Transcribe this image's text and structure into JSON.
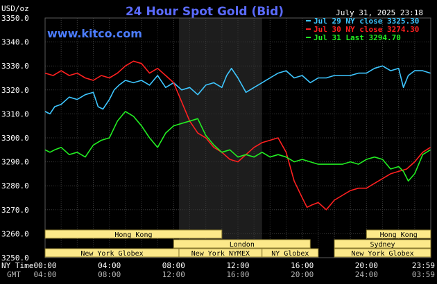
{
  "chart_data": {
    "type": "line",
    "title": "24 Hour Spot Gold (Bid)",
    "source": "www.kitco.com",
    "timestamp": "July 31, 2025 23:18",
    "yunit": "USD/oz",
    "ylim": [
      3250,
      3350
    ],
    "yticks": [
      "3350.0",
      "3340.0",
      "3330.0",
      "3320.0",
      "3310.0",
      "3300.0",
      "3290.0",
      "3280.0",
      "3270.0",
      "3260.0",
      "3250.0"
    ],
    "xrow_label": "NY Time",
    "xrow2_label": "GMT",
    "xticks": [
      "00:00",
      "04:00",
      "08:00",
      "12:00",
      "16:00",
      "20:00",
      "23:59"
    ],
    "xticks_hours": [
      0,
      4,
      8,
      12,
      16,
      20,
      23.983
    ],
    "xticks2": [
      "04:00",
      "08:00",
      "12:00",
      "16:00",
      "20:00",
      "24:00",
      "03:59"
    ],
    "xlim": [
      0,
      24
    ],
    "nymex_shade_hours": [
      8.33,
      13.5
    ],
    "grid": true,
    "legend_position": "top-right",
    "series": [
      {
        "name": "Jul 29 NY close 3325.30",
        "color": "#3ec6ff",
        "x": [
          0,
          0.3,
          0.6,
          1.0,
          1.5,
          2.0,
          2.5,
          3.0,
          3.3,
          3.6,
          4.0,
          4.3,
          4.6,
          5.0,
          5.5,
          6.0,
          6.5,
          7.0,
          7.5,
          8.0,
          8.5,
          9.0,
          9.5,
          10.0,
          10.5,
          11.0,
          11.3,
          11.6,
          12.0,
          12.5,
          13.0,
          13.5,
          14.0,
          14.5,
          15.0,
          15.5,
          16.0,
          16.5,
          17.0,
          17.5,
          18.0,
          18.5,
          19.0,
          19.5,
          20.0,
          20.5,
          21.0,
          21.5,
          22.0,
          22.3,
          22.6,
          23.0,
          23.5,
          23.98
        ],
        "y": [
          3311,
          3310,
          3313,
          3314,
          3317,
          3316,
          3318,
          3319,
          3313,
          3312,
          3316,
          3320,
          3322,
          3324,
          3323,
          3324,
          3322,
          3326,
          3321,
          3323,
          3320,
          3321,
          3318,
          3322,
          3323,
          3321,
          3326,
          3329,
          3325,
          3319,
          3321,
          3323,
          3325,
          3327,
          3328,
          3325,
          3326,
          3323,
          3325,
          3325,
          3326,
          3326,
          3326,
          3327,
          3327,
          3329,
          3330,
          3328,
          3329,
          3321,
          3326,
          3328,
          3328,
          3327
        ]
      },
      {
        "name": "Jul 30 NY close 3274.30",
        "color": "#ff2020",
        "x": [
          0,
          0.5,
          1.0,
          1.5,
          2.0,
          2.5,
          3.0,
          3.5,
          4.0,
          4.5,
          5.0,
          5.5,
          6.0,
          6.5,
          7.0,
          7.5,
          8.0,
          8.5,
          9.0,
          9.5,
          10.0,
          10.5,
          11.0,
          11.5,
          12.0,
          12.5,
          13.0,
          13.5,
          14.0,
          14.5,
          15.0,
          15.5,
          16.0,
          16.3,
          16.6,
          17.0,
          17.5,
          18.0,
          18.5,
          19.0,
          19.5,
          20.0,
          20.5,
          21.0,
          21.5,
          22.0,
          22.5,
          23.0,
          23.5,
          23.98
        ],
        "y": [
          3327,
          3326,
          3328,
          3326,
          3327,
          3325,
          3324,
          3326,
          3325,
          3327,
          3330,
          3332,
          3331,
          3327,
          3329,
          3326,
          3323,
          3315,
          3307,
          3302,
          3300,
          3296,
          3294,
          3291,
          3290,
          3293,
          3296,
          3298,
          3299,
          3300,
          3294,
          3282,
          3275,
          3271,
          3272,
          3273,
          3270,
          3274,
          3276,
          3278,
          3279,
          3279,
          3281,
          3283,
          3285,
          3286,
          3287,
          3290,
          3294,
          3296
        ]
      },
      {
        "name": "Jul 31 Last 3294.70",
        "color": "#22ee22",
        "x": [
          0,
          0.3,
          0.6,
          1.0,
          1.5,
          2.0,
          2.5,
          3.0,
          3.5,
          4.0,
          4.5,
          5.0,
          5.5,
          6.0,
          6.5,
          7.0,
          7.5,
          8.0,
          8.5,
          9.0,
          9.5,
          10.0,
          10.5,
          11.0,
          11.5,
          12.0,
          12.5,
          13.0,
          13.5,
          14.0,
          14.5,
          15.0,
          15.5,
          16.0,
          16.5,
          17.0,
          17.5,
          18.0,
          18.5,
          19.0,
          19.5,
          20.0,
          20.5,
          21.0,
          21.5,
          22.0,
          22.3,
          22.6,
          23.0,
          23.5,
          23.98
        ],
        "y": [
          3295,
          3294,
          3295,
          3296,
          3293,
          3294,
          3292,
          3297,
          3299,
          3300,
          3307,
          3311,
          3309,
          3305,
          3300,
          3296,
          3302,
          3305,
          3306,
          3307,
          3308,
          3301,
          3297,
          3294,
          3295,
          3292,
          3293,
          3292,
          3294,
          3292,
          3293,
          3292,
          3290,
          3291,
          3290,
          3289,
          3289,
          3289,
          3289,
          3290,
          3289,
          3291,
          3292,
          3291,
          3287,
          3288,
          3286,
          3282,
          3285,
          3293,
          3295
        ]
      }
    ],
    "sessions": [
      {
        "label": "Hong Kong",
        "start": -1.0,
        "end": 11.0,
        "row": 0
      },
      {
        "label": "London",
        "start": 8.0,
        "end": 16.5,
        "row": 1
      },
      {
        "label": "New York Globex",
        "start": 0,
        "end": 8.33,
        "row": 2
      },
      {
        "label": "New York NYMEX",
        "start": 8.33,
        "end": 13.5,
        "row": 2
      },
      {
        "label": "NY Globex",
        "start": 13.5,
        "end": 17.0,
        "row": 2
      },
      {
        "label": "Hong Kong",
        "start": 20.0,
        "end": 25.0,
        "row": 0
      },
      {
        "label": "Sydney",
        "start": 18.0,
        "end": 25.0,
        "row": 1
      },
      {
        "label": "New York Globex",
        "start": 18.0,
        "end": 25.0,
        "row": 2
      }
    ]
  }
}
